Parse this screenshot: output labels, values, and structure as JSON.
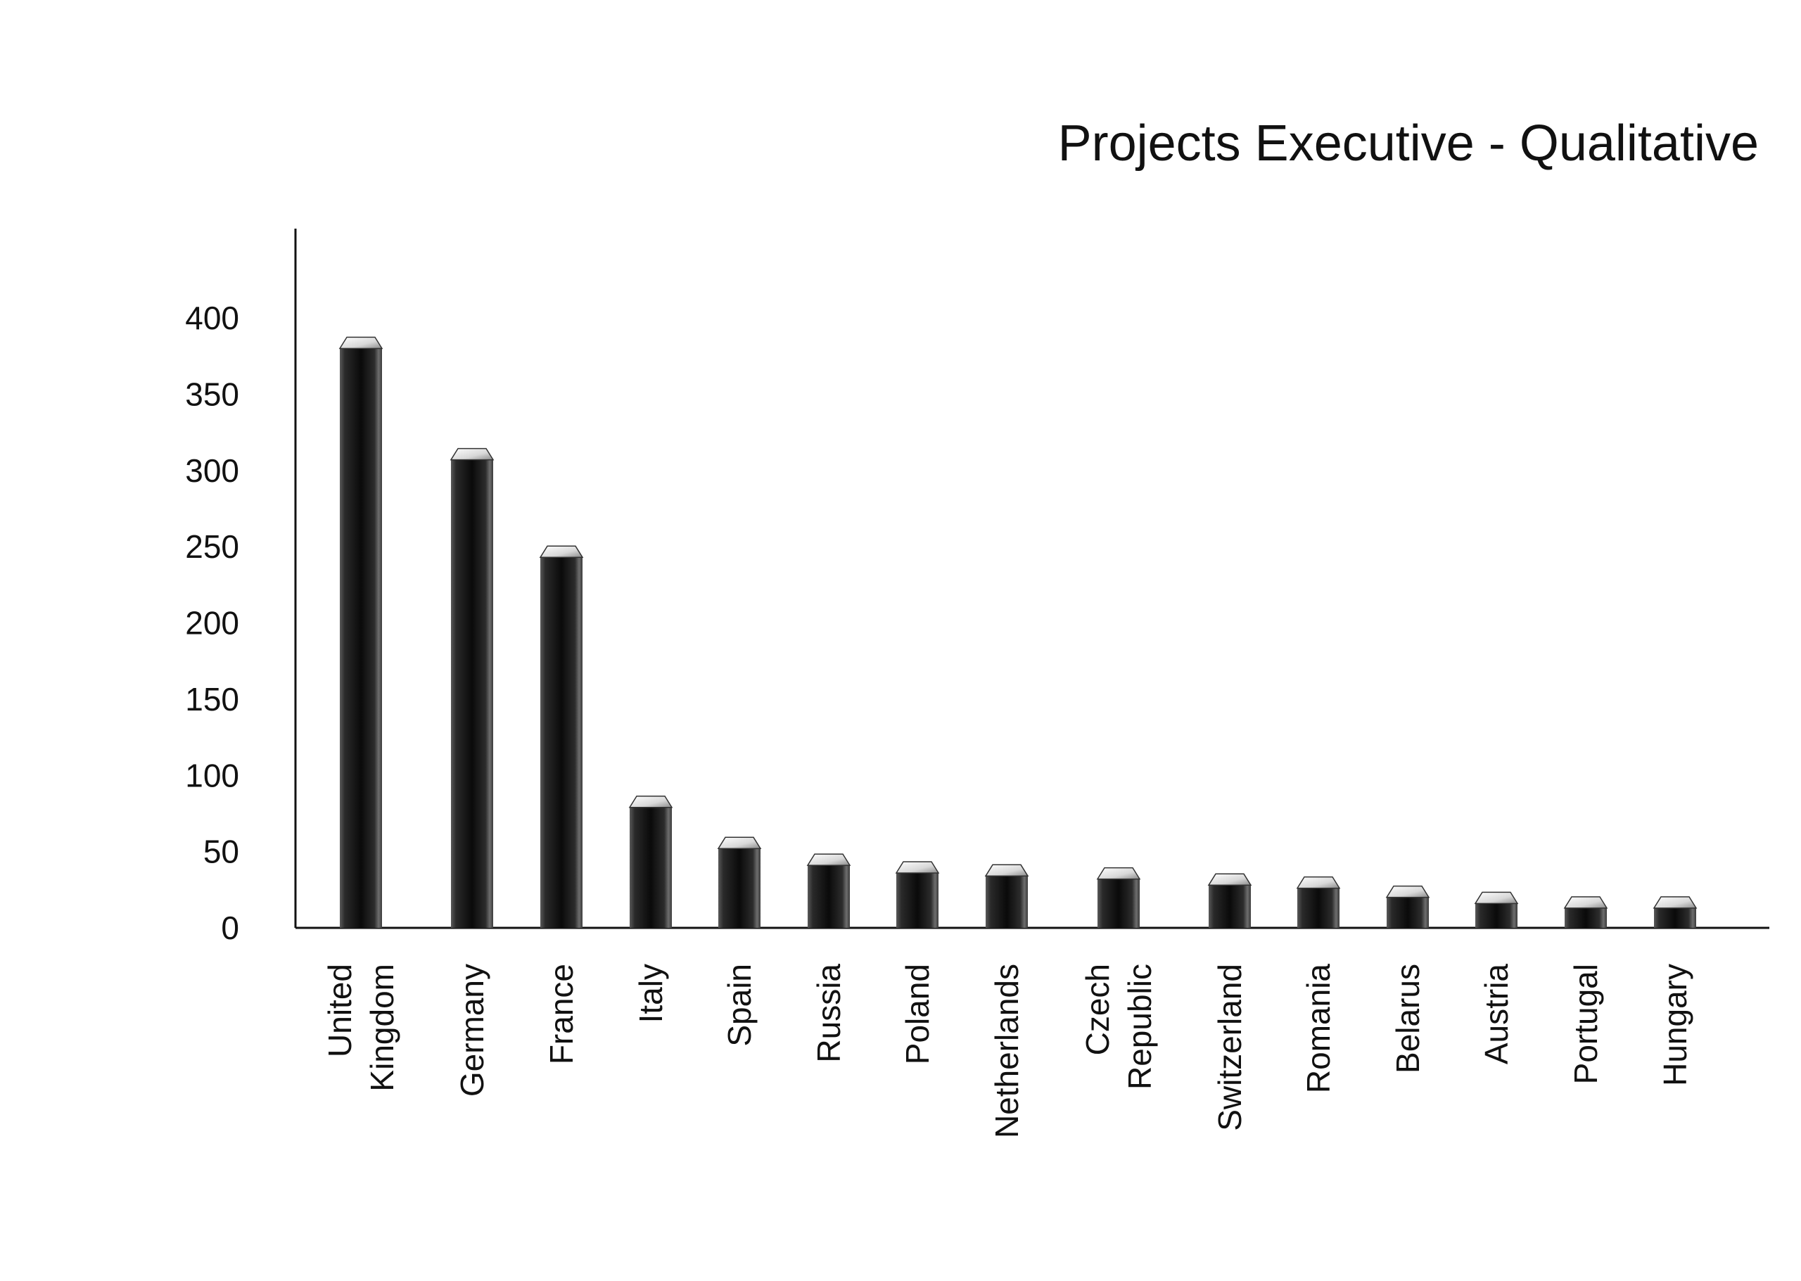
{
  "chart_data": {
    "type": "bar",
    "title": "Projects Executive - Qualitative",
    "xlabel": "",
    "ylabel": "",
    "ylim": [
      0,
      400
    ],
    "yticks": [
      0,
      50,
      100,
      150,
      200,
      250,
      300,
      350,
      400
    ],
    "grid": false,
    "legend": "none",
    "bar_color": "#1a1a1a",
    "categories": [
      [
        "United",
        "Kingdom"
      ],
      [
        "Germany"
      ],
      [
        "France"
      ],
      [
        "Italy"
      ],
      [
        "Spain"
      ],
      [
        "Russia"
      ],
      [
        "Poland"
      ],
      [
        "Netherlands"
      ],
      [
        "Czech",
        "Republic"
      ],
      [
        "Switzerland"
      ],
      [
        "Romania"
      ],
      [
        "Belarus"
      ],
      [
        "Austria"
      ],
      [
        "Portugal"
      ],
      [
        "Hungary"
      ]
    ],
    "values": [
      380,
      307,
      243,
      79,
      52,
      41,
      36,
      34,
      32,
      28,
      26,
      20,
      16,
      13,
      13
    ]
  }
}
